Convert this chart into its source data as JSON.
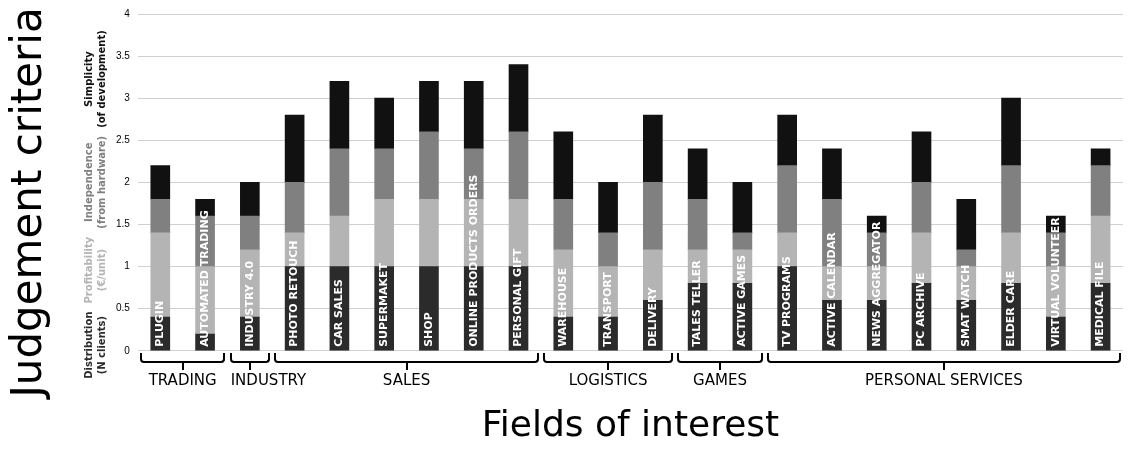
{
  "chart_data": {
    "type": "bar",
    "stacked": true,
    "xlabel": "Fields of interest",
    "ylabel": "Judgement criteria",
    "categories": [
      "PLUGIN",
      "AUTOMATED TRADING",
      "INDUSTRY 4.0",
      "PHOTO RETOUCH",
      "CAR SALES",
      "SUPERMAKET",
      "SHOP",
      "ONLINE PRODUCTS ORDERS",
      "PERSONAL GIFT",
      "WAREHOUSE",
      "TRANSPORT",
      "DELIVERY",
      "TALES TELLER",
      "ACTIVE GAMES",
      "TV PROGRAMS",
      "ACTIVE CALENDAR",
      "NEWS AGGREGATOR",
      "PC ARCHIVE",
      "SMAT WATCH",
      "ELDER CARE",
      "VIRTUAL VOLUNTEER",
      "MEDICAL FILE"
    ],
    "series": [
      {
        "name": "Distribution (N clients)",
        "color": "#2b2b2b",
        "values": [
          0.4,
          0.2,
          0.4,
          1.0,
          1.0,
          1.0,
          1.0,
          1.0,
          1.0,
          0.4,
          0.4,
          0.6,
          0.8,
          0.8,
          1.0,
          0.6,
          0.6,
          0.8,
          0.6,
          0.8,
          0.4,
          0.8
        ]
      },
      {
        "name": "Profitability (€/unit)",
        "color": "#b4b4b4",
        "values": [
          1.0,
          0.8,
          0.8,
          0.4,
          0.6,
          0.8,
          0.8,
          0.8,
          0.8,
          0.8,
          0.6,
          0.6,
          0.4,
          0.4,
          0.4,
          0.4,
          0.4,
          0.6,
          0.4,
          0.6,
          0.6,
          0.8
        ]
      },
      {
        "name": "Independence (from hardware)",
        "color": "#808080",
        "values": [
          0.4,
          0.6,
          0.4,
          0.6,
          0.8,
          0.6,
          0.8,
          0.6,
          0.8,
          0.6,
          0.4,
          0.8,
          0.6,
          0.2,
          0.8,
          0.8,
          0.4,
          0.6,
          0.2,
          0.8,
          0.4,
          0.6
        ]
      },
      {
        "name": "Simplicity (of development)",
        "color": "#111111",
        "values": [
          0.4,
          0.2,
          0.4,
          0.8,
          0.8,
          0.6,
          0.6,
          0.8,
          0.8,
          0.8,
          0.6,
          0.8,
          0.6,
          0.6,
          0.6,
          0.6,
          0.2,
          0.6,
          0.6,
          0.8,
          0.2,
          0.2
        ]
      }
    ],
    "annotations": [
      "TRADING",
      "INDUSTRY",
      "SALES",
      "LOGISTICS",
      "GAMES",
      "PERSONAL SERVICES"
    ],
    "ylim": [
      0,
      4
    ],
    "yticks": [
      0,
      0.5,
      1,
      1.5,
      2,
      2.5,
      3,
      3.5,
      4
    ],
    "grid": "y",
    "legend": "left"
  }
}
